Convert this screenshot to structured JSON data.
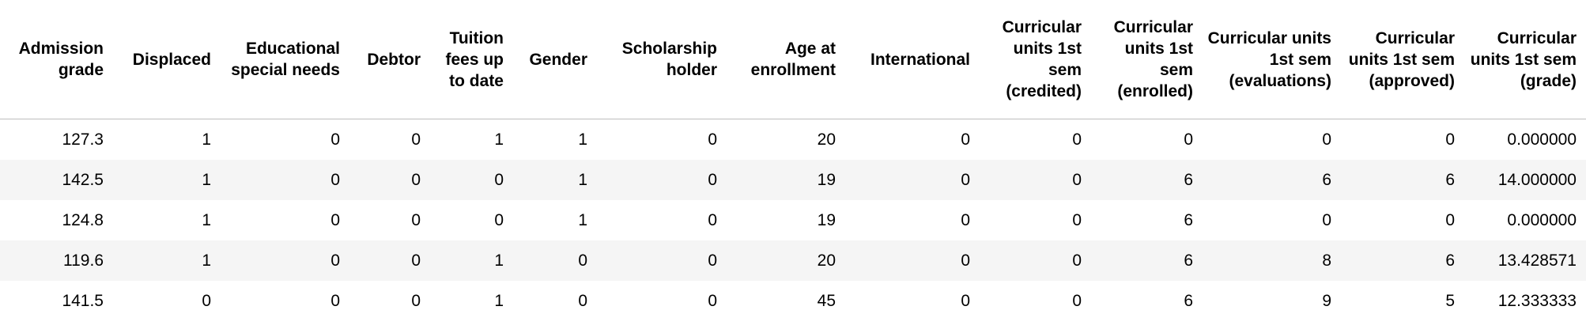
{
  "table": {
    "columns": [
      "Admission grade",
      "Displaced",
      "Educational special needs",
      "Debtor",
      "Tuition fees up to date",
      "Gender",
      "Scholarship holder",
      "Age at enrollment",
      "International",
      "Curricular units 1st sem (credited)",
      "Curricular units 1st sem (enrolled)",
      "Curricular units 1st sem (evaluations)",
      "Curricular units 1st sem (approved)",
      "Curricular units 1st sem (grade)"
    ],
    "rows": [
      [
        "127.3",
        "1",
        "0",
        "0",
        "1",
        "1",
        "0",
        "20",
        "0",
        "0",
        "0",
        "0",
        "0",
        "0.000000"
      ],
      [
        "142.5",
        "1",
        "0",
        "0",
        "0",
        "1",
        "0",
        "19",
        "0",
        "0",
        "6",
        "6",
        "6",
        "14.000000"
      ],
      [
        "124.8",
        "1",
        "0",
        "0",
        "0",
        "1",
        "0",
        "19",
        "0",
        "0",
        "6",
        "0",
        "0",
        "0.000000"
      ],
      [
        "119.6",
        "1",
        "0",
        "0",
        "1",
        "0",
        "0",
        "20",
        "0",
        "0",
        "6",
        "8",
        "6",
        "13.428571"
      ],
      [
        "141.5",
        "0",
        "0",
        "0",
        "1",
        "0",
        "0",
        "45",
        "0",
        "0",
        "6",
        "9",
        "5",
        "12.333333"
      ]
    ]
  }
}
